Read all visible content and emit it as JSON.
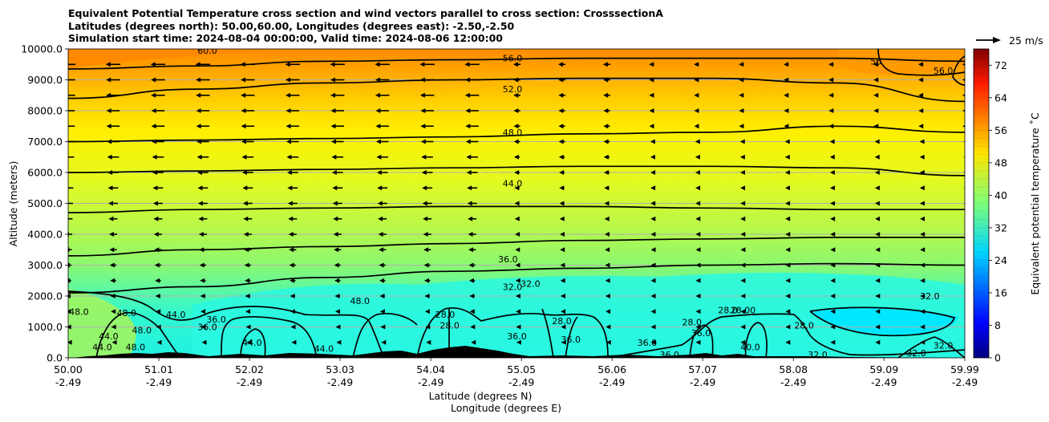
{
  "title_lines": [
    "Equivalent Potential Temperature cross section and wind vectors parallel to cross section: CrosssectionA",
    "Latitudes (degrees north): 50.00,60.00, Longitudes (degrees east): -2.50,-2.50",
    "Simulation start time: 2024-08-04 00:00:00, Valid time: 2024-08-06 12:00:00"
  ],
  "quiver_key": {
    "label": "25 m/s"
  },
  "chart_data": {
    "type": "heatmap",
    "subtype": "cross-section contour plot with wind vectors",
    "title": "Equivalent Potential Temperature cross section and wind vectors parallel to cross section: CrosssectionA",
    "ylabel": "Altitude (meters)",
    "xlabel": "Latitude (degrees N)",
    "xlabel2": "Longitude (degrees E)",
    "ylim": [
      0,
      10000
    ],
    "xlim": [
      50.0,
      59.99
    ],
    "grid": "horizontal",
    "y_ticks": [
      0,
      1000,
      2000,
      3000,
      4000,
      5000,
      6000,
      7000,
      8000,
      9000,
      10000
    ],
    "y_tick_labels": [
      "0.0",
      "1000.0",
      "2000.0",
      "3000.0",
      "4000.0",
      "5000.0",
      "6000.0",
      "7000.0",
      "8000.0",
      "9000.0",
      "10000.0"
    ],
    "x_ticks": [
      {
        "lat": "50.00",
        "lon": "-2.49"
      },
      {
        "lat": "51.01",
        "lon": "-2.49"
      },
      {
        "lat": "52.02",
        "lon": "-2.49"
      },
      {
        "lat": "53.03",
        "lon": "-2.49"
      },
      {
        "lat": "54.04",
        "lon": "-2.49"
      },
      {
        "lat": "55.05",
        "lon": "-2.49"
      },
      {
        "lat": "56.06",
        "lon": "-2.49"
      },
      {
        "lat": "57.07",
        "lon": "-2.49"
      },
      {
        "lat": "58.08",
        "lon": "-2.49"
      },
      {
        "lat": "59.09",
        "lon": "-2.49"
      },
      {
        "lat": "59.99",
        "lon": "-2.49"
      }
    ],
    "colorbar": {
      "label": "Equivalent potential temperature ˚C",
      "range": [
        0,
        76
      ],
      "ticks": [
        0,
        8,
        16,
        24,
        32,
        40,
        48,
        56,
        64,
        72
      ]
    },
    "contour_levels": [
      {
        "level": 56,
        "heights": [
          9350,
          9450,
          9600,
          9650,
          9700,
          9700,
          9700,
          9600
        ]
      },
      {
        "level": 52,
        "heights": [
          8400,
          8700,
          8900,
          9000,
          9050,
          9050,
          8900,
          8300
        ]
      },
      {
        "level": 48,
        "heights": [
          7000,
          7050,
          7100,
          7150,
          7250,
          7300,
          7500,
          7300
        ]
      },
      {
        "level": 44,
        "heights": [
          6000,
          6050,
          6100,
          6150,
          6200,
          6200,
          6150,
          5900
        ]
      },
      {
        "level": 40,
        "heights": [
          4700,
          4800,
          4850,
          4900,
          4900,
          4850,
          4800,
          4800
        ]
      },
      {
        "level": 36,
        "heights": [
          3300,
          3500,
          3600,
          3700,
          3800,
          3850,
          3900,
          3900
        ]
      },
      {
        "level": 32,
        "heights": [
          2100,
          2300,
          2600,
          2800,
          2900,
          3000,
          3050,
          3000
        ]
      }
    ],
    "contour_labels": [
      {
        "text": "60.0",
        "lat": 51.55,
        "alt": 9950
      },
      {
        "text": "56.0",
        "lat": 54.95,
        "alt": 9700
      },
      {
        "text": "52.0",
        "lat": 54.95,
        "alt": 8700
      },
      {
        "text": "48.0",
        "lat": 54.95,
        "alt": 7300
      },
      {
        "text": "44.0",
        "lat": 54.95,
        "alt": 5650
      },
      {
        "text": "36.0",
        "lat": 54.9,
        "alt": 3200
      },
      {
        "text": "32.0",
        "lat": 54.95,
        "alt": 2300
      },
      {
        "text": "32.0",
        "lat": 55.15,
        "alt": 2400
      },
      {
        "text": "48.0",
        "lat": 50.12,
        "alt": 1500
      },
      {
        "text": "48.0",
        "lat": 50.65,
        "alt": 1450
      },
      {
        "text": "44.0",
        "lat": 51.2,
        "alt": 1400
      },
      {
        "text": "36.0",
        "lat": 51.65,
        "alt": 1250
      },
      {
        "text": "36.0",
        "lat": 51.55,
        "alt": 1000
      },
      {
        "text": "44.0",
        "lat": 50.45,
        "alt": 700
      },
      {
        "text": "48.0",
        "lat": 50.82,
        "alt": 900
      },
      {
        "text": "44.0",
        "lat": 50.38,
        "alt": 350
      },
      {
        "text": "48.0",
        "lat": 50.75,
        "alt": 350
      },
      {
        "text": "44.0",
        "lat": 52.85,
        "alt": 300
      },
      {
        "text": "44.0",
        "lat": 52.05,
        "alt": 500
      },
      {
        "text": "48.0",
        "lat": 53.25,
        "alt": 1850
      },
      {
        "text": "28.0",
        "lat": 54.2,
        "alt": 1400
      },
      {
        "text": "28.0",
        "lat": 54.25,
        "alt": 1050
      },
      {
        "text": "36.0",
        "lat": 55.0,
        "alt": 700
      },
      {
        "text": "28.0",
        "lat": 55.5,
        "alt": 1200
      },
      {
        "text": "36.0",
        "lat": 55.6,
        "alt": 600
      },
      {
        "text": "36.0",
        "lat": 56.45,
        "alt": 500
      },
      {
        "text": "36.0",
        "lat": 56.7,
        "alt": 100
      },
      {
        "text": "28.0",
        "lat": 56.95,
        "alt": 1150
      },
      {
        "text": "36.0",
        "lat": 57.05,
        "alt": 800
      },
      {
        "text": "28.0",
        "lat": 57.35,
        "alt": 1550
      },
      {
        "text": "28.00",
        "lat": 57.52,
        "alt": 1550
      },
      {
        "text": "40.0",
        "lat": 57.6,
        "alt": 350
      },
      {
        "text": "28.0",
        "lat": 58.2,
        "alt": 1050
      },
      {
        "text": "32.0",
        "lat": 58.35,
        "alt": 100
      },
      {
        "text": "32.0",
        "lat": 59.6,
        "alt": 2000
      },
      {
        "text": "32.0",
        "lat": 59.45,
        "alt": 150
      },
      {
        "text": "32.0",
        "lat": 59.75,
        "alt": 400
      },
      {
        "text": "56",
        "lat": 59.0,
        "alt": 9600
      },
      {
        "text": "56.0",
        "lat": 59.75,
        "alt": 9300
      }
    ],
    "wind_vectors": {
      "description": "wind vectors parallel to cross section; mostly southward (pointing left), strongest aloft",
      "reference_speed_ms": 25,
      "columns_lat": [
        50.0,
        50.5,
        51.0,
        51.5,
        52.0,
        52.5,
        53.0,
        53.5,
        54.0,
        54.5,
        55.0,
        55.5,
        56.0,
        56.5,
        57.0,
        57.5,
        58.0,
        58.5,
        59.0,
        59.5,
        59.99
      ],
      "levels_alt": [
        500,
        1000,
        1500,
        2000,
        2500,
        3000,
        3500,
        4000,
        4500,
        5000,
        5500,
        6000,
        6500,
        7000,
        7500,
        8000,
        8500,
        9000,
        9500
      ],
      "speed_profile_ms": [
        3,
        5,
        6,
        7,
        8,
        9,
        10,
        11,
        12,
        13,
        14,
        15,
        16,
        17,
        18,
        18,
        19,
        19,
        20
      ]
    }
  }
}
